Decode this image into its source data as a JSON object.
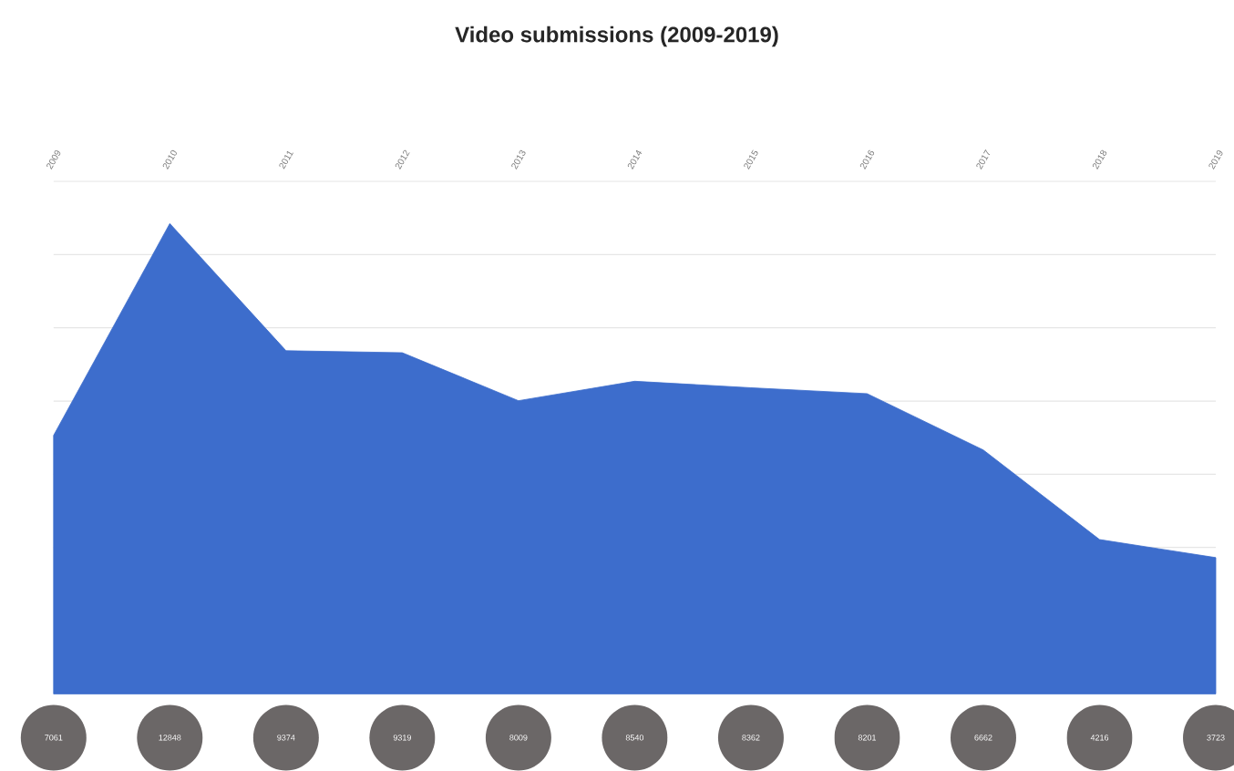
{
  "chart_data": {
    "type": "area",
    "title": "Video submissions (2009-2019)",
    "categories": [
      "2009",
      "2010",
      "2011",
      "2012",
      "2013",
      "2014",
      "2015",
      "2016",
      "2017",
      "2018",
      "2019"
    ],
    "values": [
      7061,
      12848,
      9374,
      9319,
      8009,
      8540,
      8362,
      8201,
      6662,
      4216,
      3723
    ],
    "color": "#3d6dcc",
    "ylim": [
      0,
      14000
    ],
    "yticks": [
      {
        "value": 4000,
        "label": null
      },
      {
        "value": 6000,
        "label": null
      },
      {
        "value": 8000,
        "label": null
      },
      {
        "value": 10000,
        "label": null
      },
      {
        "value": 12000,
        "label": null
      },
      {
        "value": 14000,
        "label": null
      }
    ],
    "grid": "y",
    "tick_labels": "x",
    "data_labels": true
  }
}
